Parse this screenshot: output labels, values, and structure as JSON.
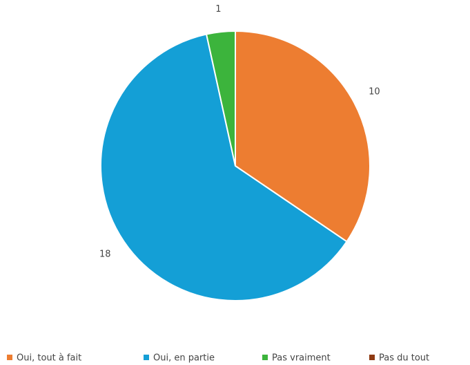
{
  "chart_data": {
    "type": "pie",
    "categories": [
      "Oui, tout à fait",
      "Oui, en partie",
      "Pas vraiment",
      "Pas du tout"
    ],
    "values": [
      10,
      18,
      1,
      0
    ],
    "colors": [
      "#ed7d31",
      "#149fd6",
      "#3cb43c",
      "#8e3a12"
    ],
    "legend": "bottom"
  }
}
